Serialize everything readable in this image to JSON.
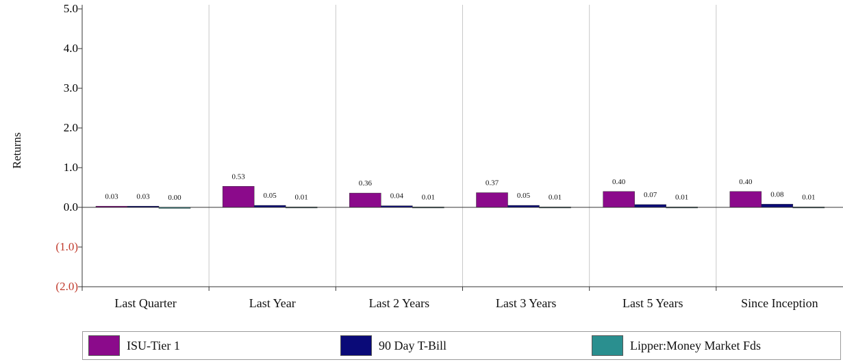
{
  "chart_data": {
    "type": "bar",
    "ylabel": "Returns",
    "ylim": [
      -2.0,
      5.0
    ],
    "yticks": [
      {
        "value": 5.0,
        "label": "5.0",
        "color": "#000000"
      },
      {
        "value": 4.0,
        "label": "4.0",
        "color": "#000000"
      },
      {
        "value": 3.0,
        "label": "3.0",
        "color": "#000000"
      },
      {
        "value": 2.0,
        "label": "2.0",
        "color": "#000000"
      },
      {
        "value": 1.0,
        "label": "1.0",
        "color": "#000000"
      },
      {
        "value": 0.0,
        "label": "0.0",
        "color": "#000000"
      },
      {
        "value": -1.0,
        "label": "(1.0)",
        "color": "#c0392b"
      },
      {
        "value": -2.0,
        "label": "(2.0)",
        "color": "#c0392b"
      }
    ],
    "categories": [
      "Last Quarter",
      "Last Year",
      "Last 2 Years",
      "Last 3 Years",
      "Last 5 Years",
      "Since Inception"
    ],
    "series": [
      {
        "name": "ISU-Tier 1",
        "color": "#8b0a8b",
        "values": [
          0.03,
          0.53,
          0.36,
          0.37,
          0.4,
          0.4
        ],
        "labels": [
          "0.03",
          "0.53",
          "0.36",
          "0.37",
          "0.40",
          "0.40"
        ]
      },
      {
        "name": "90 Day T-Bill",
        "color": "#0a0a78",
        "values": [
          0.03,
          0.05,
          0.04,
          0.05,
          0.07,
          0.08
        ],
        "labels": [
          "0.03",
          "0.05",
          "0.04",
          "0.05",
          "0.07",
          "0.08"
        ]
      },
      {
        "name": "Lipper:Money Market Fds",
        "color": "#2a8f8f",
        "values": [
          0.0,
          0.01,
          0.01,
          0.01,
          0.01,
          0.01
        ],
        "labels": [
          "0.00",
          "0.01",
          "0.01",
          "0.01",
          "0.01",
          "0.01"
        ]
      }
    ],
    "grid": "vertical separators between categories",
    "legend": "bottom"
  }
}
